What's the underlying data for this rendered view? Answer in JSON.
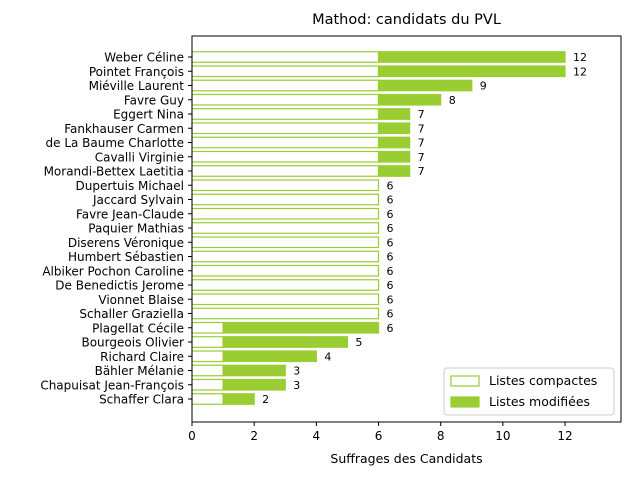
{
  "chart_data": {
    "type": "bar",
    "orientation": "horizontal",
    "stacked": true,
    "title": "Mathod: candidats du PVL",
    "xlabel": "Suffrages des Candidats",
    "ylabel": "",
    "xlim": [
      0,
      13.8
    ],
    "xticks": [
      0,
      2,
      4,
      6,
      8,
      10,
      12
    ],
    "legend": {
      "position": "bottom-right"
    },
    "colors": {
      "compactes": "#9acd32",
      "modifiees": "#9acd32"
    },
    "categories": [
      "Weber Céline",
      "Pointet François",
      "Miéville Laurent",
      "Favre Guy",
      "Eggert Nina",
      "Fankhauser Carmen",
      "de La Baume Charlotte",
      "Cavalli Virginie",
      "Morandi-Bettex Laetitia",
      "Dupertuis Michael",
      "Jaccard Sylvain",
      "Favre Jean-Claude",
      "Paquier Mathias",
      "Diserens Véronique",
      "Humbert Sébastien",
      "Albiker Pochon Caroline",
      "De Benedictis Jerome",
      "Vionnet Blaise",
      "Schaller Graziella",
      "Plagellat Cécile",
      "Bourgeois Olivier",
      "Richard Claire",
      "Bähler Mélanie",
      "Chapuisat Jean-François",
      "Schaffer Clara"
    ],
    "series": [
      {
        "name": "Listes compactes",
        "style": "outline",
        "values": [
          6,
          6,
          6,
          6,
          6,
          6,
          6,
          6,
          6,
          6,
          6,
          6,
          6,
          6,
          6,
          6,
          6,
          6,
          6,
          1,
          1,
          1,
          1,
          1,
          1
        ]
      },
      {
        "name": "Listes modifiées",
        "style": "filled",
        "values": [
          6,
          6,
          3,
          2,
          1,
          1,
          1,
          1,
          1,
          0,
          0,
          0,
          0,
          0,
          0,
          0,
          0,
          0,
          0,
          5,
          4,
          3,
          2,
          2,
          1
        ]
      }
    ],
    "totals": [
      "12",
      "12",
      "9",
      "8",
      "7",
      "7",
      "7",
      "7",
      "7",
      "6",
      "6",
      "6",
      "6",
      "6",
      "6",
      "6",
      "6",
      "6",
      "6",
      "6",
      "5",
      "4",
      "3",
      "3",
      "2"
    ]
  }
}
